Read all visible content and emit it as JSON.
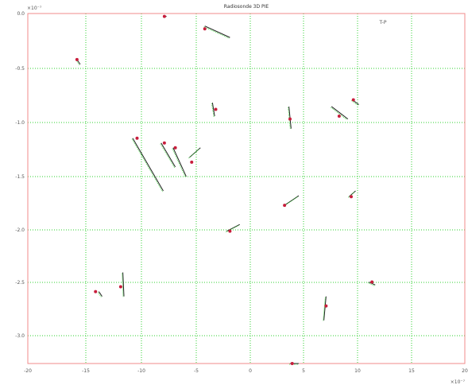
{
  "chart_data": {
    "type": "scatter",
    "title": "Radiosonde 3D PIE",
    "x_exponent": "×10⁻⁷",
    "y_exponent": "×10⁻⁷",
    "corner_label": "T-P",
    "x_tick_labels": [
      "-20",
      "-15",
      "-10",
      "-5",
      "0",
      "5",
      "10",
      "15",
      "20"
    ],
    "y_tick_labels": [
      "-3.0",
      "-2.5",
      "-2.0",
      "-1.5",
      "-1.0",
      "-0.5",
      "0.0"
    ],
    "xlim": [
      -20,
      20
    ],
    "ylim": [
      -3.3,
      0.35
    ],
    "grid": true,
    "marker_color": "#c81e3c",
    "segment_color": "#222222",
    "tracks": [
      {
        "id": "t1",
        "marker": [
          -15.5,
          -0.13
        ],
        "segment": [
          [
            -15.5,
            -0.13
          ],
          [
            -15.2,
            -0.18
          ]
        ]
      },
      {
        "id": "t2",
        "marker": [
          -7.5,
          0.32
        ],
        "segment": [
          [
            -7.5,
            0.32
          ],
          [
            -7.3,
            0.32
          ]
        ]
      },
      {
        "id": "t3",
        "marker": [
          -3.8,
          0.19
        ],
        "segment": [
          [
            -3.8,
            0.22
          ],
          [
            -1.5,
            0.1
          ]
        ]
      },
      {
        "id": "t4",
        "marker": [
          -2.8,
          -0.65
        ],
        "segment": [
          [
            -3.1,
            -0.58
          ],
          [
            -2.9,
            -0.72
          ]
        ]
      },
      {
        "id": "t5",
        "marker": [
          -5.0,
          -1.2
        ],
        "segment": [
          [
            -5.2,
            -1.15
          ],
          [
            -4.2,
            -1.05
          ]
        ]
      },
      {
        "id": "t6",
        "marker": [
          -10.0,
          -0.95
        ],
        "segment": [
          [
            -10.4,
            -0.95
          ],
          [
            -7.6,
            -1.5
          ]
        ]
      },
      {
        "id": "t7",
        "marker": [
          -7.5,
          -1.0
        ],
        "segment": [
          [
            -7.8,
            -1.0
          ],
          [
            -6.5,
            -1.25
          ]
        ]
      },
      {
        "id": "t8",
        "marker": [
          -6.5,
          -1.05
        ],
        "segment": [
          [
            -6.7,
            -1.05
          ],
          [
            -5.5,
            -1.35
          ]
        ]
      },
      {
        "id": "t9",
        "marker": [
          -1.5,
          -1.92
        ],
        "segment": [
          [
            -1.8,
            -1.92
          ],
          [
            -0.6,
            -1.85
          ]
        ]
      },
      {
        "id": "t10",
        "marker": [
          4.0,
          -0.75
        ],
        "segment": [
          [
            3.9,
            -0.62
          ],
          [
            4.1,
            -0.85
          ]
        ]
      },
      {
        "id": "t11",
        "marker": [
          8.5,
          -0.72
        ],
        "segment": [
          [
            7.8,
            -0.62
          ],
          [
            9.3,
            -0.75
          ]
        ]
      },
      {
        "id": "t12",
        "marker": [
          9.8,
          -0.55
        ],
        "segment": [
          [
            9.7,
            -0.55
          ],
          [
            10.3,
            -0.6
          ]
        ]
      },
      {
        "id": "t13",
        "marker": [
          3.5,
          -1.65
        ],
        "segment": [
          [
            3.5,
            -1.65
          ],
          [
            4.8,
            -1.55
          ]
        ]
      },
      {
        "id": "t14",
        "marker": [
          9.6,
          -1.56
        ],
        "segment": [
          [
            9.4,
            -1.56
          ],
          [
            10.0,
            -1.5
          ]
        ]
      },
      {
        "id": "t15",
        "marker": [
          11.5,
          -2.45
        ],
        "segment": [
          [
            11.2,
            -2.45
          ],
          [
            11.8,
            -2.48
          ]
        ]
      },
      {
        "id": "t16",
        "marker": [
          -13.8,
          -2.55
        ],
        "segment": [
          [
            -13.5,
            -2.55
          ],
          [
            -13.2,
            -2.6
          ]
        ]
      },
      {
        "id": "t17",
        "marker": [
          -11.5,
          -2.5
        ],
        "segment": [
          [
            -11.3,
            -2.35
          ],
          [
            -11.2,
            -2.6
          ]
        ]
      },
      {
        "id": "t18",
        "marker": [
          7.3,
          -2.7
        ],
        "segment": [
          [
            7.3,
            -2.6
          ],
          [
            7.1,
            -2.85
          ]
        ]
      },
      {
        "id": "t19",
        "marker": [
          4.2,
          -3.3
        ],
        "segment": [
          [
            4.0,
            -3.3
          ],
          [
            4.8,
            -3.3
          ]
        ]
      }
    ]
  }
}
